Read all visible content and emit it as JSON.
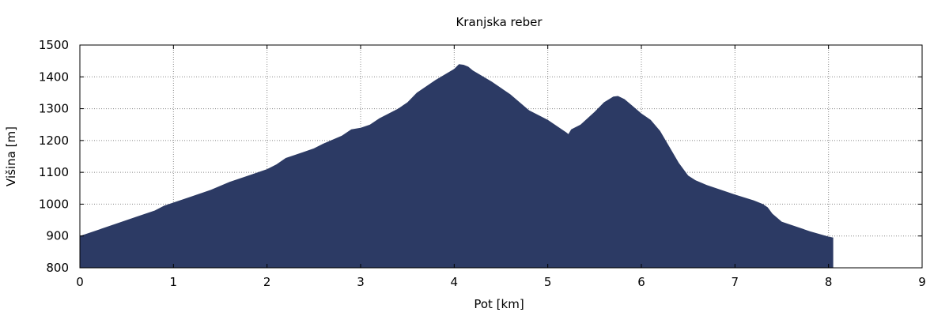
{
  "chart_data": {
    "type": "area",
    "title": "Kranjska reber",
    "xlabel": "Pot [km]",
    "ylabel": "Višina [m]",
    "xlim": [
      0,
      9
    ],
    "ylim": [
      800,
      1500
    ],
    "xticks": [
      "0",
      "1",
      "2",
      "3",
      "4",
      "5",
      "6",
      "7",
      "8",
      "9"
    ],
    "yticks": [
      "800",
      "900",
      "1000",
      "1100",
      "1200",
      "1300",
      "1400",
      "1500"
    ],
    "grid": true,
    "fill_color": "#2c3a64",
    "series": [
      {
        "x": [
          0,
          0.2,
          0.4,
          0.6,
          0.8,
          0.9,
          1.0,
          1.2,
          1.4,
          1.6,
          1.8,
          2.0,
          2.1,
          2.2,
          2.3,
          2.5,
          2.6,
          2.8,
          2.9,
          3.0,
          3.1,
          3.2,
          3.4,
          3.5,
          3.6,
          3.8,
          4.0,
          4.05,
          4.1,
          4.15,
          4.2,
          4.4,
          4.6,
          4.8,
          5.0,
          5.1,
          5.2,
          5.22,
          5.25,
          5.35,
          5.5,
          5.6,
          5.7,
          5.75,
          5.82,
          5.9,
          6.0,
          6.1,
          6.2,
          6.3,
          6.4,
          6.5,
          6.58,
          6.7,
          6.9,
          7.0,
          7.2,
          7.3,
          7.35,
          7.4,
          7.5,
          7.6,
          7.8,
          8.0,
          8.05
        ],
        "y": [
          900,
          920,
          940,
          960,
          980,
          995,
          1005,
          1025,
          1045,
          1070,
          1090,
          1110,
          1125,
          1145,
          1155,
          1175,
          1190,
          1215,
          1235,
          1240,
          1250,
          1270,
          1300,
          1320,
          1350,
          1390,
          1425,
          1440,
          1438,
          1432,
          1420,
          1385,
          1345,
          1295,
          1265,
          1245,
          1225,
          1220,
          1235,
          1250,
          1290,
          1320,
          1338,
          1340,
          1330,
          1310,
          1285,
          1265,
          1230,
          1180,
          1130,
          1090,
          1075,
          1060,
          1040,
          1030,
          1012,
          1000,
          990,
          970,
          945,
          935,
          915,
          898,
          895
        ]
      }
    ]
  }
}
